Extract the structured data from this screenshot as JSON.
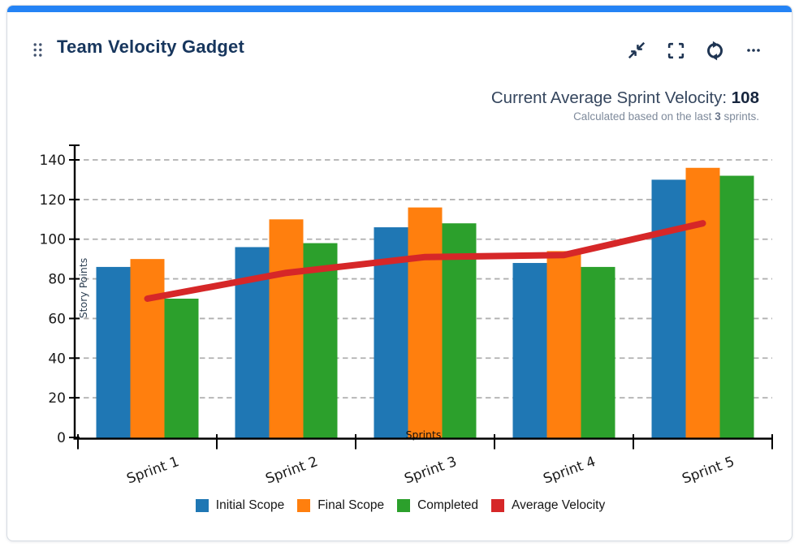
{
  "card": {
    "title": "Team Velocity Gadget",
    "accent_color": "#2483f5",
    "toolbar": [
      {
        "name": "minimize",
        "icon": "collapse-arrows-icon"
      },
      {
        "name": "fullscreen",
        "icon": "fullscreen-brackets-icon"
      },
      {
        "name": "refresh",
        "icon": "refresh-icon"
      },
      {
        "name": "more-options",
        "icon": "ellipsis-icon"
      }
    ]
  },
  "summary": {
    "label": "Current Average Sprint Velocity:",
    "value": "108",
    "note_prefix": "Calculated based on the last",
    "note_bold": "3",
    "note_suffix": "sprints."
  },
  "chart_data": {
    "type": "bar",
    "title": "",
    "categories": [
      "Sprint 1",
      "Sprint 2",
      "Sprint 3",
      "Sprint 4",
      "Sprint 5"
    ],
    "series": [
      {
        "name": "Initial Scope",
        "type": "bar",
        "color": "#1f77b4",
        "values": [
          86,
          96,
          106,
          88,
          130
        ]
      },
      {
        "name": "Final Scope",
        "type": "bar",
        "color": "#ff7f0e",
        "values": [
          90,
          110,
          116,
          94,
          136
        ]
      },
      {
        "name": "Completed",
        "type": "bar",
        "color": "#2ca02c",
        "values": [
          70,
          98,
          108,
          86,
          132
        ]
      },
      {
        "name": "Average Velocity",
        "type": "line",
        "color": "#d62728",
        "values": [
          70,
          83,
          91,
          92,
          108
        ]
      }
    ],
    "xlabel": "Sprints",
    "ylabel": "Story Points",
    "ylim": [
      0,
      140
    ],
    "ytick_step": 20,
    "grid": "horizontal-dashed",
    "grid_color": "#b0b0b0",
    "legend_position": "bottom"
  }
}
